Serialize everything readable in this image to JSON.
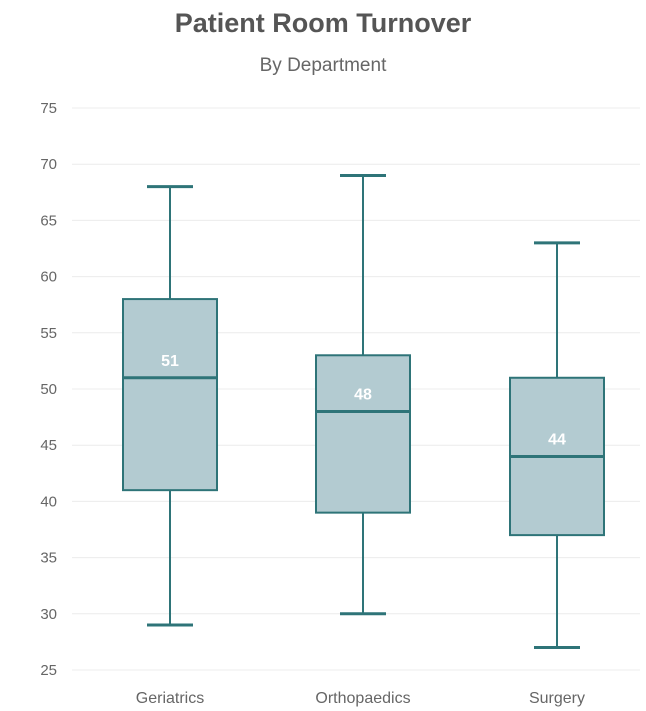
{
  "chart_data": {
    "type": "boxplot",
    "title": "Patient Room Turnover",
    "subtitle": "By Department",
    "xlabel": "",
    "ylabel": "",
    "ylim": [
      25,
      75
    ],
    "yticks": [
      25,
      30,
      35,
      40,
      45,
      50,
      55,
      60,
      65,
      70,
      75
    ],
    "grid": true,
    "categories": [
      "Geriatrics",
      "Orthopaedics",
      "Surgery"
    ],
    "boxes": [
      {
        "category": "Geriatrics",
        "min": 29,
        "q1": 41,
        "median": 51,
        "q3": 58,
        "max": 68,
        "median_label": "51"
      },
      {
        "category": "Orthopaedics",
        "min": 30,
        "q1": 39,
        "median": 48,
        "q3": 53,
        "max": 69,
        "median_label": "48"
      },
      {
        "category": "Surgery",
        "min": 27,
        "q1": 37,
        "median": 44,
        "q3": 51,
        "max": 63,
        "median_label": "44"
      }
    ],
    "colors": {
      "box_fill": "#b3cbd1",
      "stroke": "#2e7478",
      "grid": "#ececec",
      "text": "#666666"
    }
  }
}
